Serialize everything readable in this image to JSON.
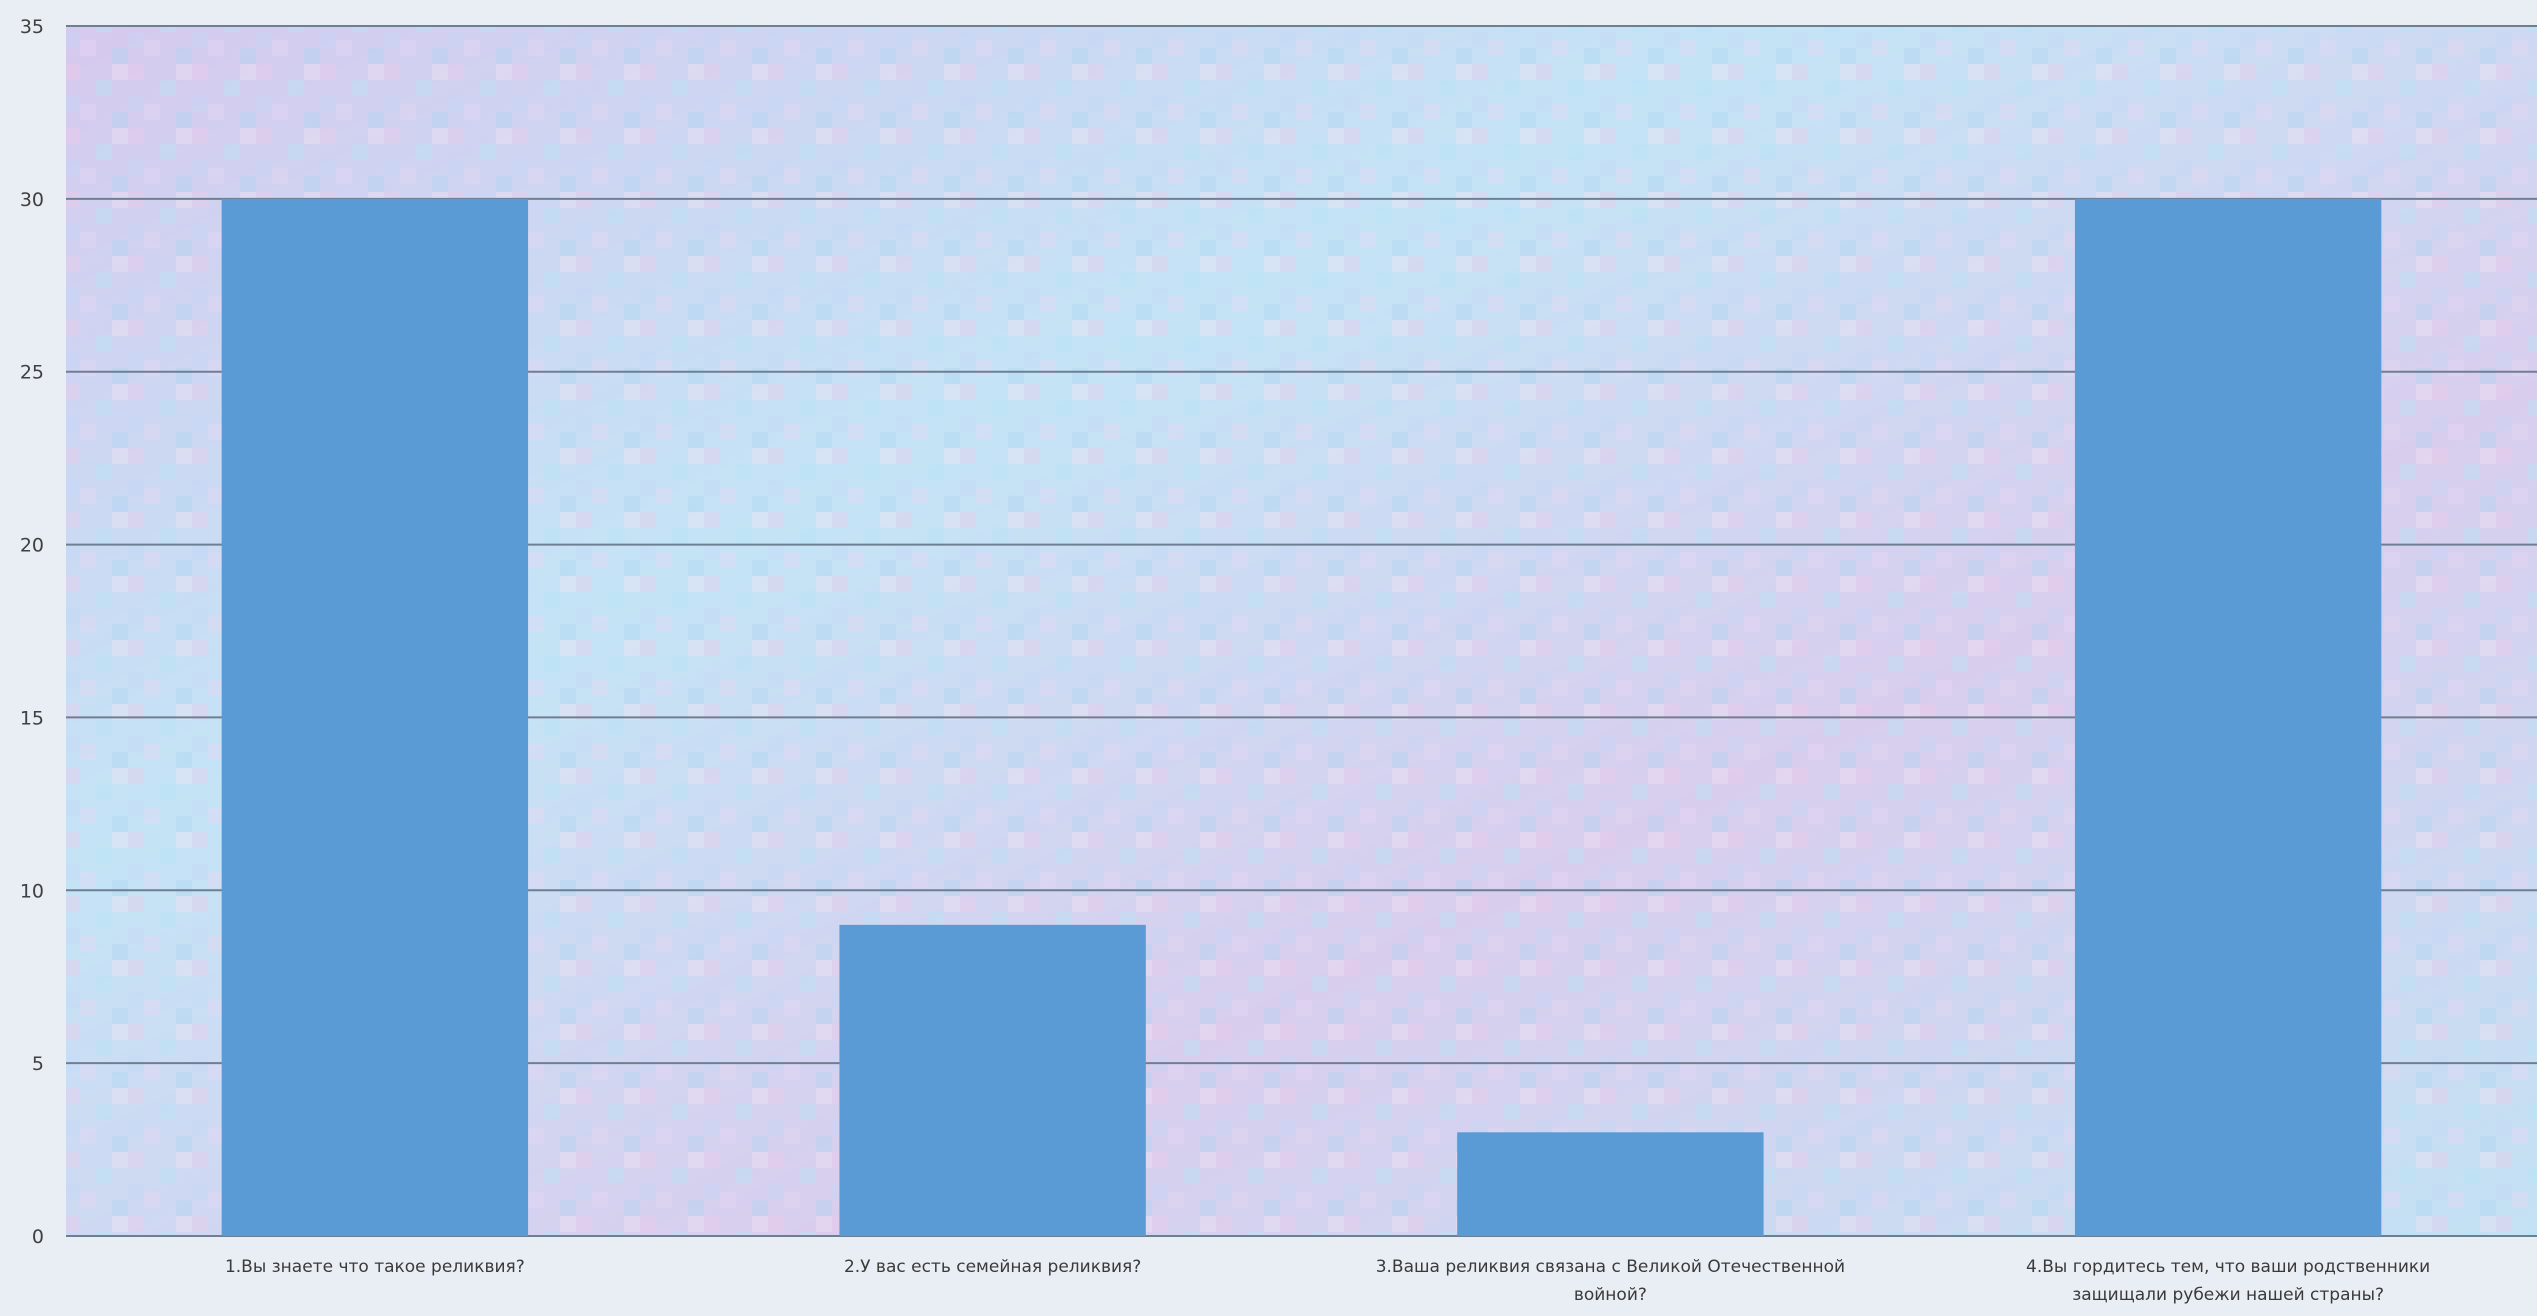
{
  "chart_data": {
    "type": "bar",
    "categories": [
      "1.Вы знаете что такое реликвия?",
      "2.У вас есть семейная реликвия?",
      "3.Ваша реликвия связана с Великой Отечественной войной?",
      "4.Вы гордитесь тем, что ваши родственники защищали рубежи нашей страны?"
    ],
    "category_lines": [
      [
        "1.Вы знаете что такое реликвия?"
      ],
      [
        "2.У вас есть семейная реликвия?"
      ],
      [
        "3.Ваша реликвия связана с Великой Отечественной",
        "войной?"
      ],
      [
        "4.Вы гордитесь тем, что ваши родственники",
        "защищали рубежи нашей страны?"
      ]
    ],
    "values": [
      30,
      9,
      3,
      30
    ],
    "title": "",
    "xlabel": "",
    "ylabel": "",
    "ylim": [
      0,
      35
    ],
    "yticks": [
      0,
      5,
      10,
      15,
      20,
      25,
      30,
      35
    ],
    "grid": true,
    "legend": "none",
    "colors": {
      "bar": "#5b9bd5",
      "grid": "#6f7f92",
      "plot_bg": "#c9d8f0",
      "plot_tint_a": "#f0c8e8",
      "plot_tint_b": "#bfe6f5"
    }
  }
}
